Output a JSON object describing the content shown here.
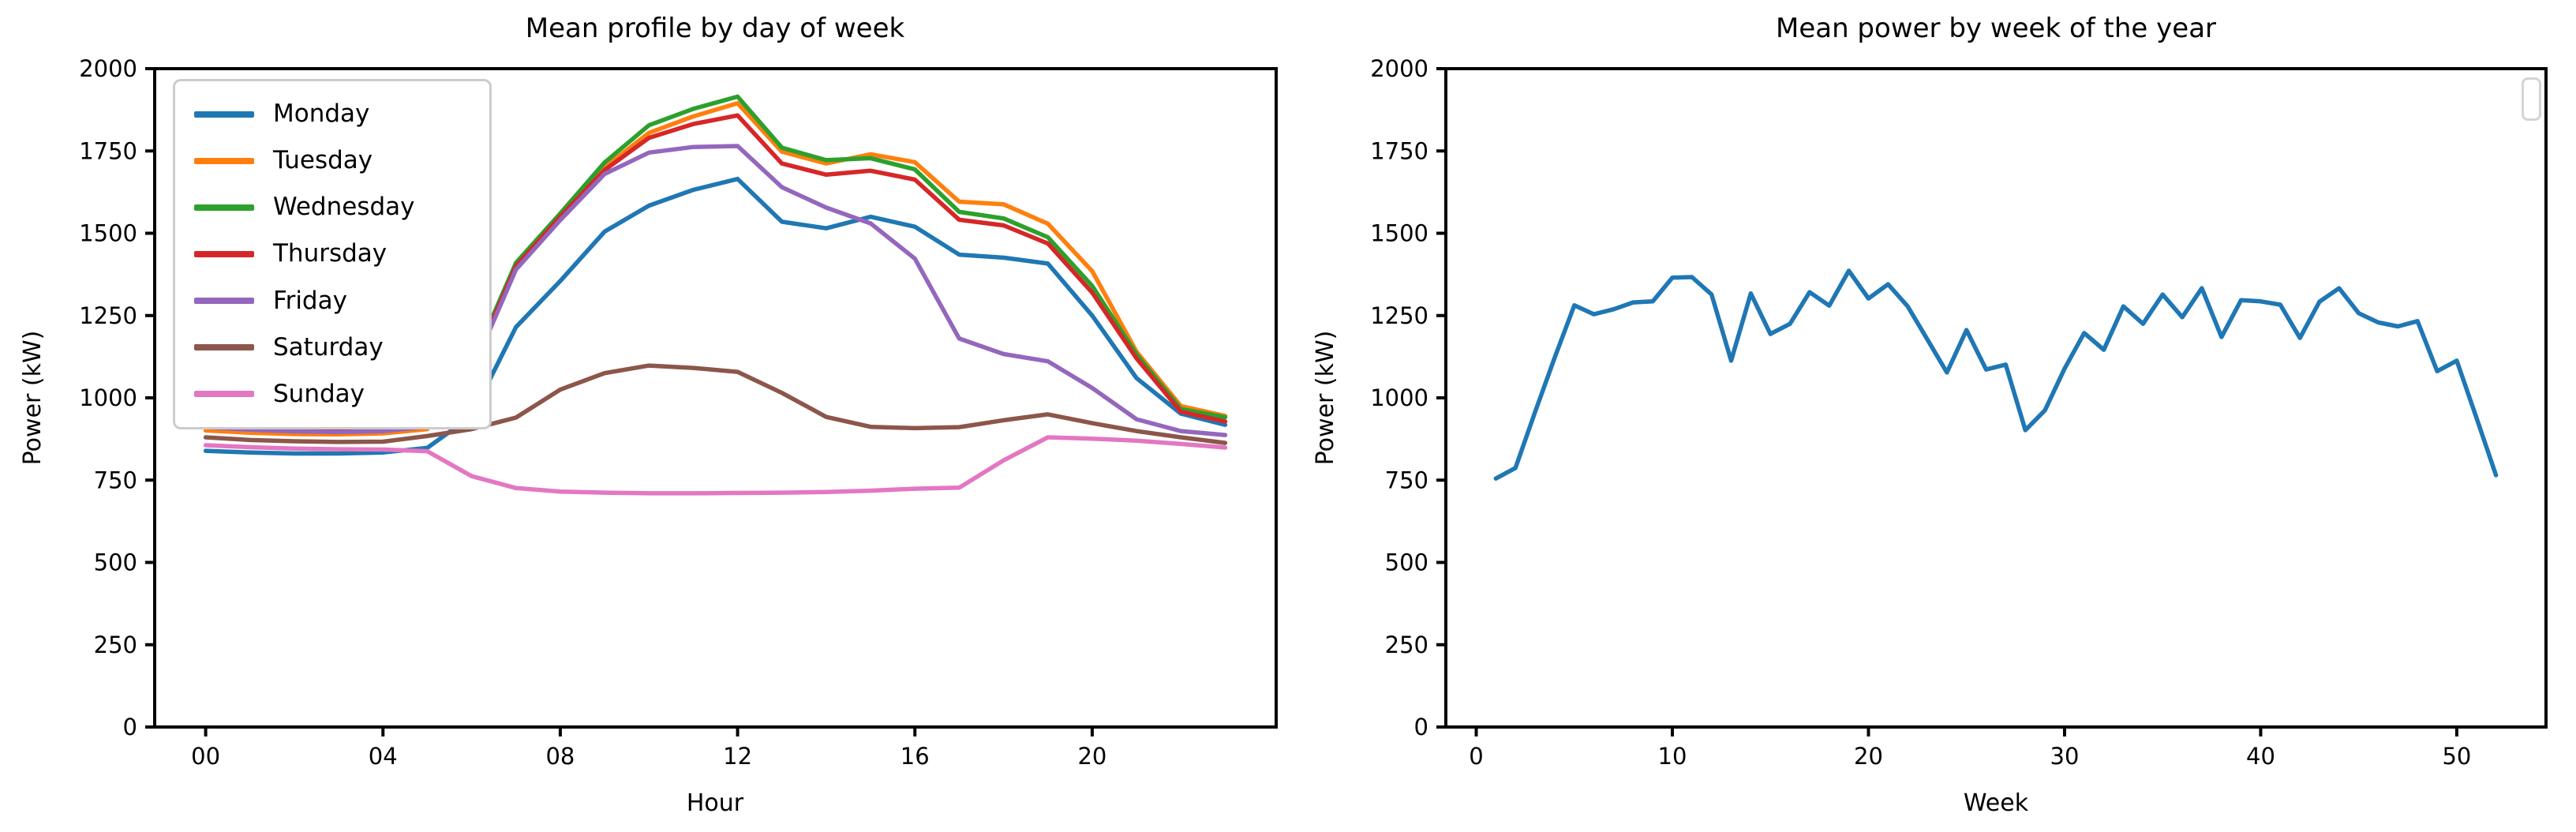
{
  "figure": {
    "background": "#ffffff",
    "axis_color": "#000000"
  },
  "chart_data": {
    "note": "see charts array"
  },
  "charts": [
    {
      "id": "day-profile",
      "type": "line",
      "title": "Mean profile by day of week",
      "xlabel": "Hour",
      "ylabel": "Power (kW)",
      "xlim": [
        -1.15,
        24.15
      ],
      "ylim": [
        0,
        2000
      ],
      "x": [
        0,
        1,
        2,
        3,
        4,
        5,
        6,
        7,
        8,
        9,
        10,
        11,
        12,
        13,
        14,
        15,
        16,
        17,
        18,
        19,
        20,
        21,
        22,
        23
      ],
      "xtick_positions": [
        0,
        4,
        8,
        12,
        16,
        20
      ],
      "xtick_labels": [
        "00",
        "04",
        "08",
        "12",
        "16",
        "20"
      ],
      "ytick_positions": [
        0,
        250,
        500,
        750,
        1000,
        1250,
        1500,
        1750,
        2000
      ],
      "ytick_labels": [
        "0",
        "250",
        "500",
        "750",
        "1000",
        "1250",
        "1500",
        "1750",
        "2000"
      ],
      "grid": false,
      "legend": {
        "visible": true,
        "position": "upper-left",
        "empty": false
      },
      "series": [
        {
          "name": "Monday",
          "color": "#1f77b4",
          "values": [
            839,
            834,
            831,
            831,
            834,
            848,
            945,
            1215,
            1355,
            1505,
            1584,
            1632,
            1665,
            1535,
            1515,
            1550,
            1520,
            1435,
            1426,
            1408,
            1250,
            1060,
            952,
            918
          ]
        },
        {
          "name": "Tuesday",
          "color": "#ff7f0e",
          "values": [
            901,
            894,
            890,
            889,
            892,
            905,
            1085,
            1395,
            1555,
            1700,
            1805,
            1855,
            1895,
            1748,
            1712,
            1740,
            1716,
            1596,
            1588,
            1529,
            1385,
            1140,
            975,
            945
          ]
        },
        {
          "name": "Wednesday",
          "color": "#2ca02c",
          "values": [
            928,
            920,
            915,
            913,
            916,
            930,
            1100,
            1410,
            1560,
            1715,
            1828,
            1878,
            1915,
            1760,
            1722,
            1728,
            1694,
            1565,
            1545,
            1488,
            1340,
            1132,
            966,
            941
          ]
        },
        {
          "name": "Thursday",
          "color": "#d62728",
          "values": [
            921,
            913,
            908,
            906,
            909,
            922,
            1090,
            1400,
            1550,
            1692,
            1790,
            1832,
            1858,
            1712,
            1678,
            1690,
            1663,
            1541,
            1524,
            1469,
            1320,
            1120,
            958,
            928
          ]
        },
        {
          "name": "Friday",
          "color": "#9467bd",
          "values": [
            911,
            903,
            898,
            896,
            899,
            912,
            1080,
            1390,
            1540,
            1680,
            1745,
            1762,
            1765,
            1640,
            1578,
            1530,
            1423,
            1180,
            1133,
            1111,
            1030,
            935,
            899,
            887
          ]
        },
        {
          "name": "Saturday",
          "color": "#8c564b",
          "values": [
            880,
            872,
            868,
            866,
            867,
            884,
            905,
            940,
            1025,
            1075,
            1098,
            1091,
            1079,
            1015,
            942,
            912,
            908,
            911,
            932,
            950,
            923,
            899,
            880,
            863
          ]
        },
        {
          "name": "Sunday",
          "color": "#e377c2",
          "values": [
            856,
            850,
            846,
            844,
            843,
            838,
            762,
            726,
            715,
            712,
            710,
            710,
            711,
            712,
            714,
            718,
            724,
            727,
            810,
            880,
            876,
            870,
            860,
            849
          ]
        }
      ]
    },
    {
      "id": "week-profile",
      "type": "line",
      "title": "Mean power by week of the year",
      "xlabel": "Week",
      "ylabel": "Power (kW)",
      "xlim": [
        -1.55,
        54.55
      ],
      "ylim": [
        0,
        2000
      ],
      "x": [
        1,
        2,
        3,
        4,
        5,
        6,
        7,
        8,
        9,
        10,
        11,
        12,
        13,
        14,
        15,
        16,
        17,
        18,
        19,
        20,
        21,
        22,
        23,
        24,
        25,
        26,
        27,
        28,
        29,
        30,
        31,
        32,
        33,
        34,
        35,
        36,
        37,
        38,
        39,
        40,
        41,
        42,
        43,
        44,
        45,
        46,
        47,
        48,
        49,
        50,
        51,
        52
      ],
      "xtick_positions": [
        0,
        10,
        20,
        30,
        40,
        50
      ],
      "xtick_labels": [
        "0",
        "10",
        "20",
        "30",
        "40",
        "50"
      ],
      "ytick_positions": [
        0,
        250,
        500,
        750,
        1000,
        1250,
        1500,
        1750,
        2000
      ],
      "ytick_labels": [
        "0",
        "250",
        "500",
        "750",
        "1000",
        "1250",
        "1500",
        "1750",
        "2000"
      ],
      "grid": false,
      "legend": {
        "visible": true,
        "position": "upper-right",
        "empty": true
      },
      "series": [
        {
          "name": "",
          "color": "#1f77b4",
          "values": [
            755,
            787,
            957,
            1122,
            1281,
            1254,
            1269,
            1290,
            1293,
            1365,
            1367,
            1314,
            1113,
            1317,
            1194,
            1225,
            1321,
            1280,
            1386,
            1302,
            1345,
            1278,
            1178,
            1077,
            1206,
            1086,
            1101,
            902,
            962,
            1089,
            1197,
            1146,
            1278,
            1225,
            1314,
            1245,
            1333,
            1185,
            1297,
            1293,
            1283,
            1182,
            1292,
            1333,
            1257,
            1229,
            1217,
            1233,
            1081,
            1113,
            940,
            765
          ]
        }
      ]
    }
  ]
}
